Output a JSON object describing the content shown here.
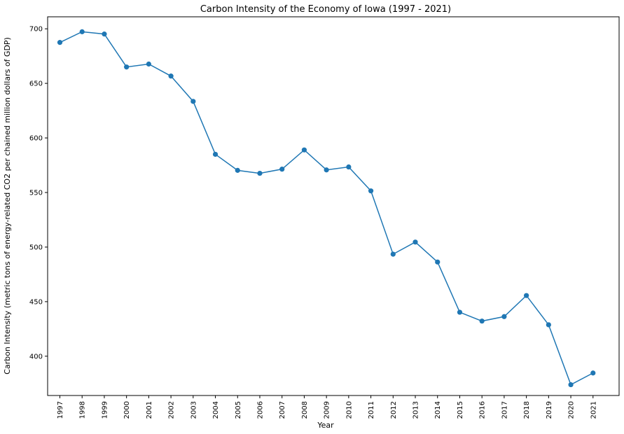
{
  "chart_data": {
    "type": "line",
    "title": "Carbon Intensity of the Economy of Iowa (1997 - 2021)",
    "xlabel": "Year",
    "ylabel": "Carbon Intensity (metric tons of energy-related CO2 per chained million dollars of GDP)",
    "x": [
      "1997",
      "1998",
      "1999",
      "2000",
      "2001",
      "2002",
      "2003",
      "2004",
      "2005",
      "2006",
      "2007",
      "2008",
      "2009",
      "2010",
      "2011",
      "2012",
      "2013",
      "2014",
      "2015",
      "2016",
      "2017",
      "2018",
      "2019",
      "2020",
      "2021"
    ],
    "series": [
      {
        "values": [
          687.5,
          697.3,
          695.2,
          665.0,
          667.7,
          656.7,
          633.5,
          585.0,
          570.3,
          567.6,
          571.4,
          589.0,
          570.7,
          573.4,
          551.5,
          493.5,
          504.6,
          486.3,
          440.3,
          432.2,
          436.3,
          455.6,
          428.8,
          373.9,
          384.6
        ]
      }
    ],
    "yticks": [
      400,
      450,
      500,
      550,
      600,
      650,
      700
    ],
    "ylim": [
      364,
      711
    ],
    "grid": false,
    "color": "#1f77b4"
  }
}
